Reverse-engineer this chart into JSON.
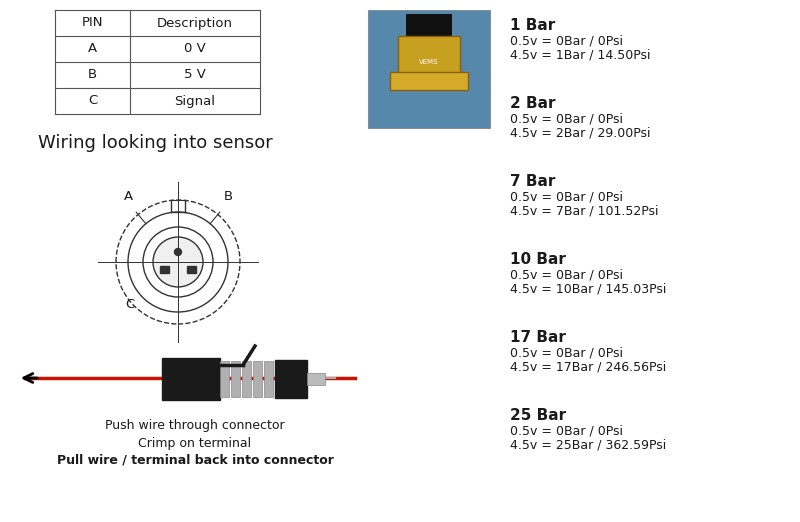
{
  "bg_color": "#ffffff",
  "table_headers": [
    "PIN",
    "Description"
  ],
  "table_rows": [
    [
      "A",
      "0 V"
    ],
    [
      "B",
      "5 V"
    ],
    [
      "C",
      "Signal"
    ]
  ],
  "wiring_label": "Wiring looking into sensor",
  "connector_instructions": [
    "Push wire through connector",
    "Crimp on terminal",
    "Pull wire / terminal back into connector"
  ],
  "pressure_entries": [
    {
      "bar": "1 Bar",
      "line1": "0.5v = 0Bar / 0Psi",
      "line2": "4.5v = 1Bar / 14.50Psi"
    },
    {
      "bar": "2 Bar",
      "line1": "0.5v = 0Bar / 0Psi",
      "line2": "4.5v = 2Bar / 29.00Psi"
    },
    {
      "bar": "7 Bar",
      "line1": "0.5v = 0Bar / 0Psi",
      "line2": "4.5v = 7Bar / 101.52Psi"
    },
    {
      "bar": "10 Bar",
      "line1": "0.5v = 0Bar / 0Psi",
      "line2": "4.5v = 10Bar / 145.03Psi"
    },
    {
      "bar": "17 Bar",
      "line1": "0.5v = 0Bar / 0Psi",
      "line2": "4.5v = 17Bar / 246.56Psi"
    },
    {
      "bar": "25 Bar",
      "line1": "0.5v = 0Bar / 0Psi",
      "line2": "4.5v = 25Bar / 362.59Psi"
    }
  ],
  "text_color": "#1a1a1a",
  "table_border_color": "#555555",
  "circle_color": "#333333",
  "wire_red": "#cc1100",
  "connector_black": "#1a1a1a",
  "arrow_color": "#000000",
  "photo_bg": "#5588aa"
}
